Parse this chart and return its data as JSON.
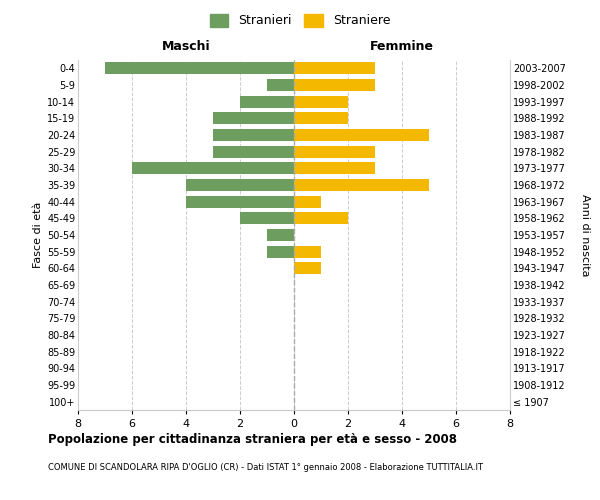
{
  "age_groups": [
    "100+",
    "95-99",
    "90-94",
    "85-89",
    "80-84",
    "75-79",
    "70-74",
    "65-69",
    "60-64",
    "55-59",
    "50-54",
    "45-49",
    "40-44",
    "35-39",
    "30-34",
    "25-29",
    "20-24",
    "15-19",
    "10-14",
    "5-9",
    "0-4"
  ],
  "birth_years": [
    "≤ 1907",
    "1908-1912",
    "1913-1917",
    "1918-1922",
    "1923-1927",
    "1928-1932",
    "1933-1937",
    "1938-1942",
    "1943-1947",
    "1948-1952",
    "1953-1957",
    "1958-1962",
    "1963-1967",
    "1968-1972",
    "1973-1977",
    "1978-1982",
    "1983-1987",
    "1988-1992",
    "1993-1997",
    "1998-2002",
    "2003-2007"
  ],
  "maschi": [
    0,
    0,
    0,
    0,
    0,
    0,
    0,
    0,
    0,
    1,
    1,
    2,
    4,
    4,
    6,
    3,
    3,
    3,
    2,
    1,
    7
  ],
  "femmine": [
    0,
    0,
    0,
    0,
    0,
    0,
    0,
    0,
    1,
    1,
    0,
    2,
    1,
    5,
    3,
    3,
    5,
    2,
    2,
    3,
    3
  ],
  "color_maschi": "#6e9e5f",
  "color_femmine": "#f5b800",
  "xlim": 8,
  "title": "Popolazione per cittadinanza straniera per età e sesso - 2008",
  "subtitle": "COMUNE DI SCANDOLARA RIPA D'OGLIO (CR) - Dati ISTAT 1° gennaio 2008 - Elaborazione TUTTITALIA.IT",
  "ylabel_left": "Fasce di età",
  "ylabel_right": "Anni di nascita",
  "label_maschi": "Stranieri",
  "label_femmine": "Straniere",
  "header_maschi": "Maschi",
  "header_femmine": "Femmine",
  "background_color": "#ffffff",
  "grid_color": "#cccccc"
}
